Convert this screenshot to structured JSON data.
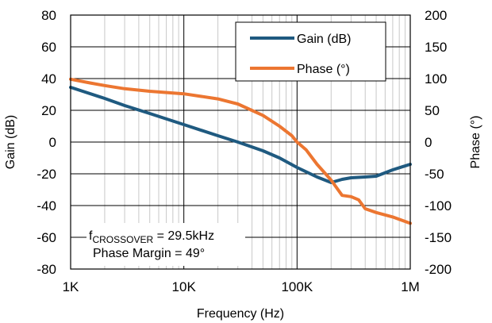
{
  "chart_data": {
    "type": "line",
    "xlabel": "Frequency (Hz)",
    "ylabel_left": "Gain (dB)",
    "ylabel_right": "Phase (°)",
    "x_scale": "log",
    "xlim": [
      1000,
      1000000
    ],
    "ylim_left": [
      -80,
      80
    ],
    "ylim_right": [
      -200,
      200
    ],
    "x_ticks": [
      {
        "value": 1000,
        "label": "1K"
      },
      {
        "value": 10000,
        "label": "10K"
      },
      {
        "value": 100000,
        "label": "100K"
      },
      {
        "value": 1000000,
        "label": "1M"
      }
    ],
    "y_ticks_left": [
      80,
      60,
      40,
      20,
      0,
      -20,
      -40,
      -60,
      -80
    ],
    "y_ticks_right": [
      200,
      150,
      100,
      50,
      0,
      -50,
      -100,
      -150,
      -200
    ],
    "grid": true,
    "legend_position": "top-right",
    "series": [
      {
        "name": "Gain (dB)",
        "axis": "left",
        "color": "#1f5a80",
        "points": [
          [
            1000,
            34.5
          ],
          [
            2000,
            27.5
          ],
          [
            3000,
            23
          ],
          [
            5000,
            18
          ],
          [
            10000,
            11
          ],
          [
            20000,
            4
          ],
          [
            30000,
            0
          ],
          [
            50000,
            -5.5
          ],
          [
            70000,
            -10
          ],
          [
            100000,
            -16
          ],
          [
            150000,
            -22
          ],
          [
            200000,
            -25.5
          ],
          [
            250000,
            -23.5
          ],
          [
            300000,
            -22.5
          ],
          [
            400000,
            -22
          ],
          [
            500000,
            -21.5
          ],
          [
            700000,
            -17.5
          ],
          [
            1000000,
            -14
          ]
        ]
      },
      {
        "name": "Phase (°)",
        "axis": "right",
        "color": "#ec7631",
        "points": [
          [
            1000,
            99
          ],
          [
            1500,
            93
          ],
          [
            2000,
            89
          ],
          [
            3000,
            84
          ],
          [
            5000,
            80
          ],
          [
            10000,
            76
          ],
          [
            20000,
            68
          ],
          [
            30000,
            60
          ],
          [
            50000,
            42
          ],
          [
            70000,
            25
          ],
          [
            90000,
            10
          ],
          [
            100000,
            0
          ],
          [
            120000,
            -12
          ],
          [
            150000,
            -35
          ],
          [
            200000,
            -60
          ],
          [
            250000,
            -84
          ],
          [
            300000,
            -86
          ],
          [
            350000,
            -91
          ],
          [
            400000,
            -105
          ],
          [
            500000,
            -111
          ],
          [
            700000,
            -118
          ],
          [
            1000000,
            -128
          ]
        ]
      }
    ],
    "annotations": {
      "crossover_prefix": "f",
      "crossover_subscript": "CROSSOVER",
      "crossover_value": " = 29.5kHz",
      "phase_margin": "Phase Margin = 49°"
    }
  }
}
